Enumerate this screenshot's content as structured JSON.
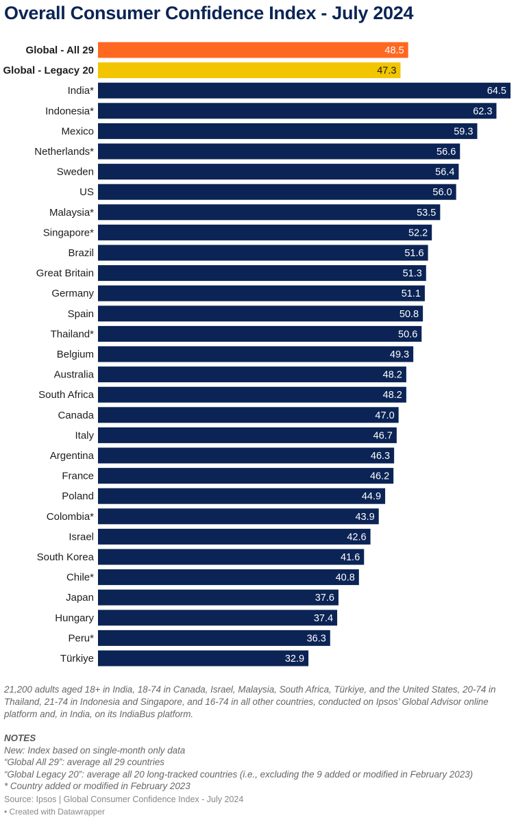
{
  "title": "Overall Consumer Confidence Index - July 2024",
  "chart_data": {
    "type": "bar",
    "orientation": "horizontal",
    "xlim": [
      0,
      64.5
    ],
    "categories": [
      "Global - All 29",
      "Global - Legacy 20",
      "India*",
      "Indonesia*",
      "Mexico",
      "Netherlands*",
      "Sweden",
      "US",
      "Malaysia*",
      "Singapore*",
      "Brazil",
      "Great Britain",
      "Germany",
      "Spain",
      "Thailand*",
      "Belgium",
      "Australia",
      "South Africa",
      "Canada",
      "Italy",
      "Argentina",
      "France",
      "Poland",
      "Colombia*",
      "Israel",
      "South Korea",
      "Chile*",
      "Japan",
      "Hungary",
      "Peru*",
      "Türkiye"
    ],
    "values": [
      48.5,
      47.3,
      64.5,
      62.3,
      59.3,
      56.6,
      56.4,
      56.0,
      53.5,
      52.2,
      51.6,
      51.3,
      51.1,
      50.8,
      50.6,
      49.3,
      48.2,
      48.2,
      47.0,
      46.7,
      46.3,
      46.2,
      44.9,
      43.9,
      42.6,
      41.6,
      40.8,
      37.6,
      37.4,
      36.3,
      32.9
    ],
    "value_labels": [
      "48.5",
      "47.3",
      "64.5",
      "62.3",
      "59.3",
      "56.6",
      "56.4",
      "56.0",
      "53.5",
      "52.2",
      "51.6",
      "51.3",
      "51.1",
      "50.8",
      "50.6",
      "49.3",
      "48.2",
      "48.2",
      "47.0",
      "46.7",
      "46.3",
      "46.2",
      "44.9",
      "43.9",
      "42.6",
      "41.6",
      "40.8",
      "37.6",
      "37.4",
      "36.3",
      "32.9"
    ],
    "bold_categories": [
      "Global - All 29",
      "Global - Legacy 20"
    ],
    "colors": {
      "Global - All 29": "#ff6820",
      "Global - Legacy 20": "#f2c500",
      "default": "#0b2455"
    },
    "label_colors": {
      "Global - All 29": "#ffffff",
      "Global - Legacy 20": "#1c1c1c",
      "default": "#ffffff"
    }
  },
  "description": "21,200 adults aged 18+ in India, 18-74 in Canada, Israel, Malaysia, South Africa, Türkiye, and the United States, 20-74 in Thailand, 21-74 in Indonesia and Singapore, and 16-74 in all other countries, conducted on Ipsos’ Global Advisor online platform and, in India, on its IndiaBus platform.",
  "notes": {
    "heading": "NOTES",
    "line1": "New: Index based on single-month only data",
    "line2": "“Global All 29”: average all 29 countries",
    "line3": "“Global Legacy 20”: average all 20 long-tracked countries (i.e., excluding the 9 added or modified in February 2023)",
    "line4": "* Country added or modified in February 2023"
  },
  "source": "Source: Ipsos | Global Consumer Confidence Index - July 2024",
  "credit": "• Created with Datawrapper"
}
